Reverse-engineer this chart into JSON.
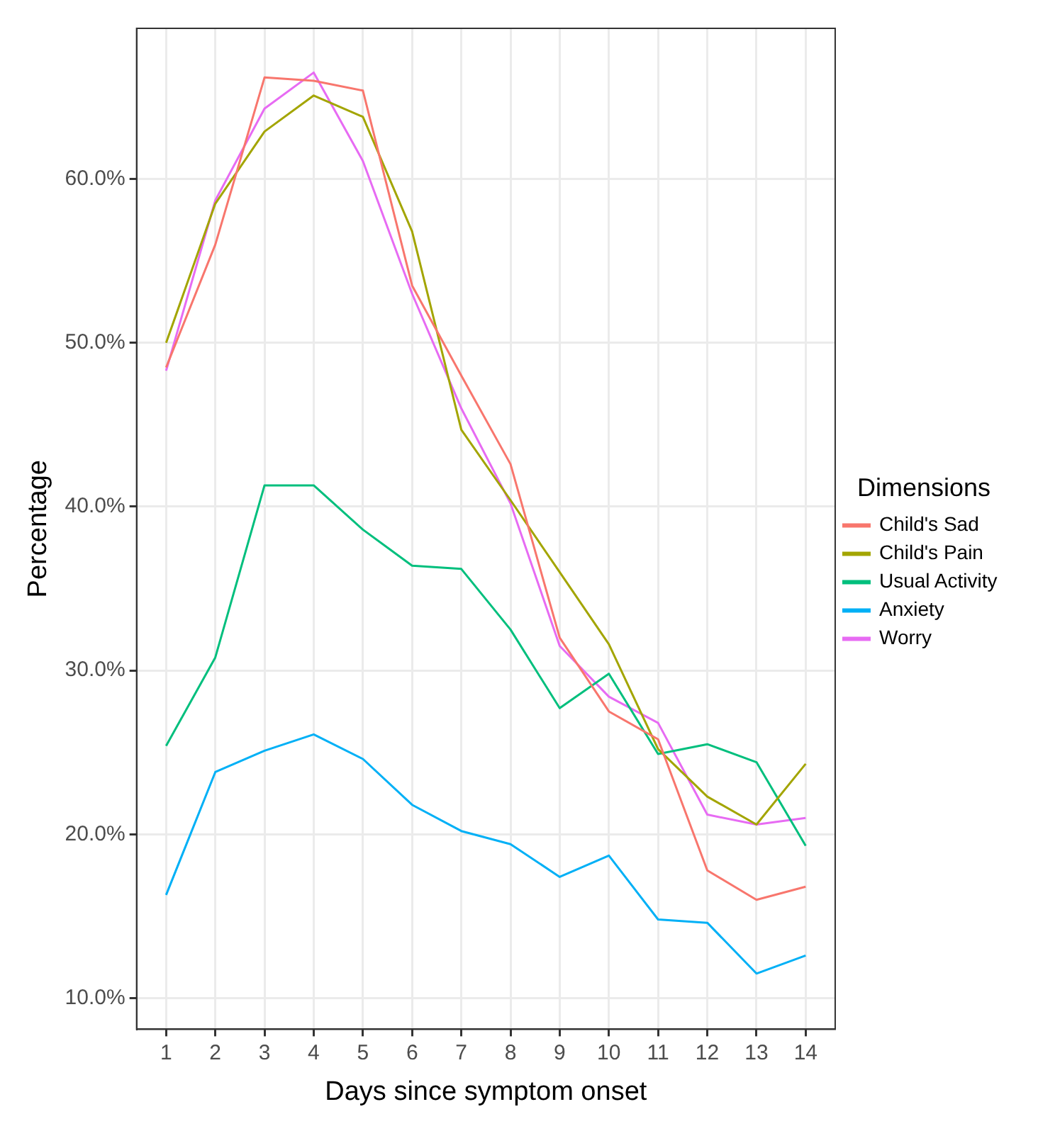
{
  "chart_data": {
    "type": "line",
    "xlabel": "Days since symptom onset",
    "ylabel": "Percentage",
    "legend_title": "Dimensions",
    "x": [
      1,
      2,
      3,
      4,
      5,
      6,
      7,
      8,
      9,
      10,
      11,
      12,
      13,
      14
    ],
    "series": [
      {
        "name": "Child's Sad",
        "color": "#f8766d",
        "values": [
          48.5,
          56,
          66.2,
          66,
          65.4,
          53.5,
          48,
          42.6,
          32,
          27.5,
          25.8,
          17.8,
          16,
          16.8
        ]
      },
      {
        "name": "Child's Pain",
        "color": "#a3a500",
        "values": [
          50,
          58.5,
          62.9,
          65.1,
          63.8,
          56.8,
          44.7,
          40.4,
          36,
          31.6,
          25.2,
          22.3,
          20.6,
          24.3
        ]
      },
      {
        "name": "Usual Activity",
        "color": "#00bf7d",
        "values": [
          25.4,
          30.8,
          41.3,
          41.3,
          38.6,
          36.4,
          36.2,
          32.5,
          27.7,
          29.8,
          24.9,
          25.5,
          24.4,
          19.3
        ]
      },
      {
        "name": "Anxiety",
        "color": "#00b0f6",
        "values": [
          16.3,
          23.8,
          25.1,
          26.1,
          24.6,
          21.8,
          20.2,
          19.4,
          17.4,
          18.7,
          14.8,
          14.6,
          11.5,
          12.6
        ]
      },
      {
        "name": "Worry",
        "color": "#e76bf3",
        "values": [
          48.3,
          58.7,
          64.3,
          66.5,
          61.1,
          53,
          46,
          40.2,
          31.5,
          28.4,
          26.8,
          21.2,
          20.6,
          21
        ]
      }
    ],
    "xlim": [
      0.4,
      14.6
    ],
    "xticks": [
      1,
      2,
      3,
      4,
      5,
      6,
      7,
      8,
      9,
      10,
      11,
      12,
      13,
      14
    ],
    "ylim": [
      8.1,
      69.2
    ],
    "yticks": [
      {
        "value": 10,
        "label": "10.0%"
      },
      {
        "value": 20,
        "label": "20.0%"
      },
      {
        "value": 30,
        "label": "30.0%"
      },
      {
        "value": 40,
        "label": "40.0%"
      },
      {
        "value": 50,
        "label": "50.0%"
      },
      {
        "value": 60,
        "label": "60.0%"
      }
    ],
    "grid": true,
    "legend": "right",
    "marker": "none",
    "line_style": "solid"
  }
}
